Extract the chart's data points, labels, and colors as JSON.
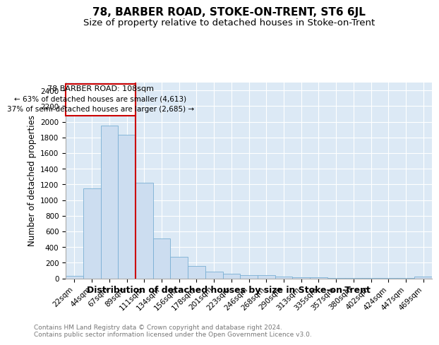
{
  "title": "78, BARBER ROAD, STOKE-ON-TRENT, ST6 6JL",
  "subtitle": "Size of property relative to detached houses in Stoke-on-Trent",
  "xlabel": "Distribution of detached houses by size in Stoke-on-Trent",
  "ylabel": "Number of detached properties",
  "categories": [
    "22sqm",
    "44sqm",
    "67sqm",
    "89sqm",
    "111sqm",
    "134sqm",
    "156sqm",
    "178sqm",
    "201sqm",
    "223sqm",
    "246sqm",
    "268sqm",
    "290sqm",
    "313sqm",
    "335sqm",
    "357sqm",
    "380sqm",
    "402sqm",
    "424sqm",
    "447sqm",
    "469sqm"
  ],
  "values": [
    30,
    1150,
    1950,
    1830,
    1220,
    510,
    280,
    155,
    90,
    55,
    45,
    45,
    20,
    15,
    10,
    8,
    8,
    5,
    5,
    5,
    20
  ],
  "bar_color": "#ccddf0",
  "bar_edge_color": "#7aafd4",
  "marker_bar_index": 4,
  "marker_label": "78 BARBER ROAD: 108sqm",
  "annotation_line1": "← 63% of detached houses are smaller (4,613)",
  "annotation_line2": "37% of semi-detached houses are larger (2,685) →",
  "marker_color": "#cc0000",
  "ylim": [
    0,
    2500
  ],
  "yticks": [
    0,
    200,
    400,
    600,
    800,
    1000,
    1200,
    1400,
    1600,
    1800,
    2000,
    2200,
    2400
  ],
  "title_fontsize": 11,
  "subtitle_fontsize": 9.5,
  "xlabel_fontsize": 9,
  "ylabel_fontsize": 8.5,
  "tick_fontsize": 7.5,
  "annotation_fontsize": 8,
  "footer_text": "Contains HM Land Registry data © Crown copyright and database right 2024.\nContains public sector information licensed under the Open Government Licence v3.0.",
  "footer_fontsize": 6.5,
  "plot_bg_color": "#dce9f5",
  "grid_color": "white"
}
